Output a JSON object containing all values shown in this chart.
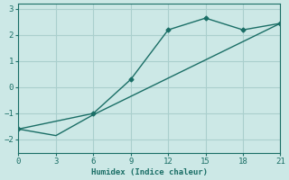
{
  "xlabel": "Humidex (Indice chaleur)",
  "bg_color": "#cce8e6",
  "grid_color": "#aacfcd",
  "line_color": "#1a6e66",
  "line1_x": [
    0,
    6,
    9,
    12,
    15,
    18,
    21
  ],
  "line1_y": [
    -1.6,
    -1.0,
    0.3,
    2.2,
    2.65,
    2.2,
    2.45
  ],
  "line2_x": [
    0,
    3,
    6,
    15,
    21
  ],
  "line2_y": [
    -1.6,
    -1.85,
    -1.05,
    1.05,
    2.45
  ],
  "xticks": [
    0,
    3,
    6,
    9,
    12,
    15,
    18,
    21
  ],
  "yticks": [
    -2,
    -1,
    0,
    1,
    2,
    3
  ],
  "ylim": [
    -2.5,
    3.2
  ],
  "xlim": [
    0,
    21
  ]
}
